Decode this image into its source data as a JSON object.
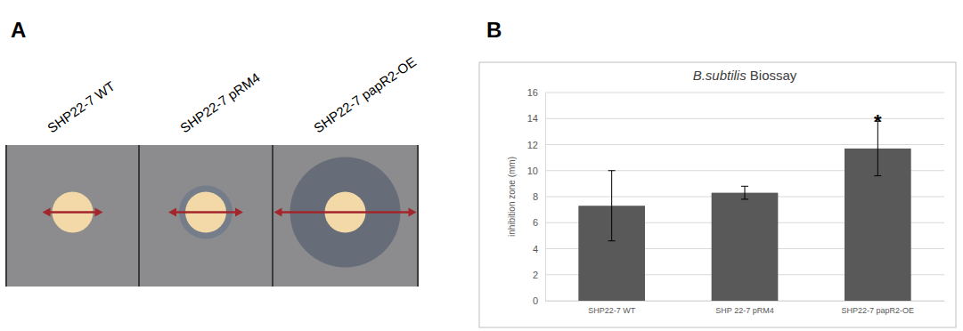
{
  "panel_labels": [
    "A",
    "B"
  ],
  "photo": {
    "labels": [
      "SHP22-7 WT",
      "SHP22-7 pRM4",
      "SHP22-7 papR2-OE"
    ]
  },
  "chart_data": {
    "type": "bar",
    "title": "B.subtilis Biossay",
    "categories": [
      "SHP22-7 WT",
      "SHP 22-7 pRM4",
      "SHP22-7 papR2-OE"
    ],
    "values": [
      7.3,
      8.3,
      11.7
    ],
    "errors": [
      2.7,
      0.5,
      2.1
    ],
    "color": "#595959",
    "y_label": "inhibition zone (mm)",
    "ylim": [
      0,
      16
    ],
    "yticks": [
      0,
      2,
      4,
      6,
      8,
      10,
      12,
      14,
      16
    ],
    "grid": true,
    "annotations": [
      {
        "text": "*",
        "x": "SHP22-7 papR2-OE"
      }
    ]
  }
}
